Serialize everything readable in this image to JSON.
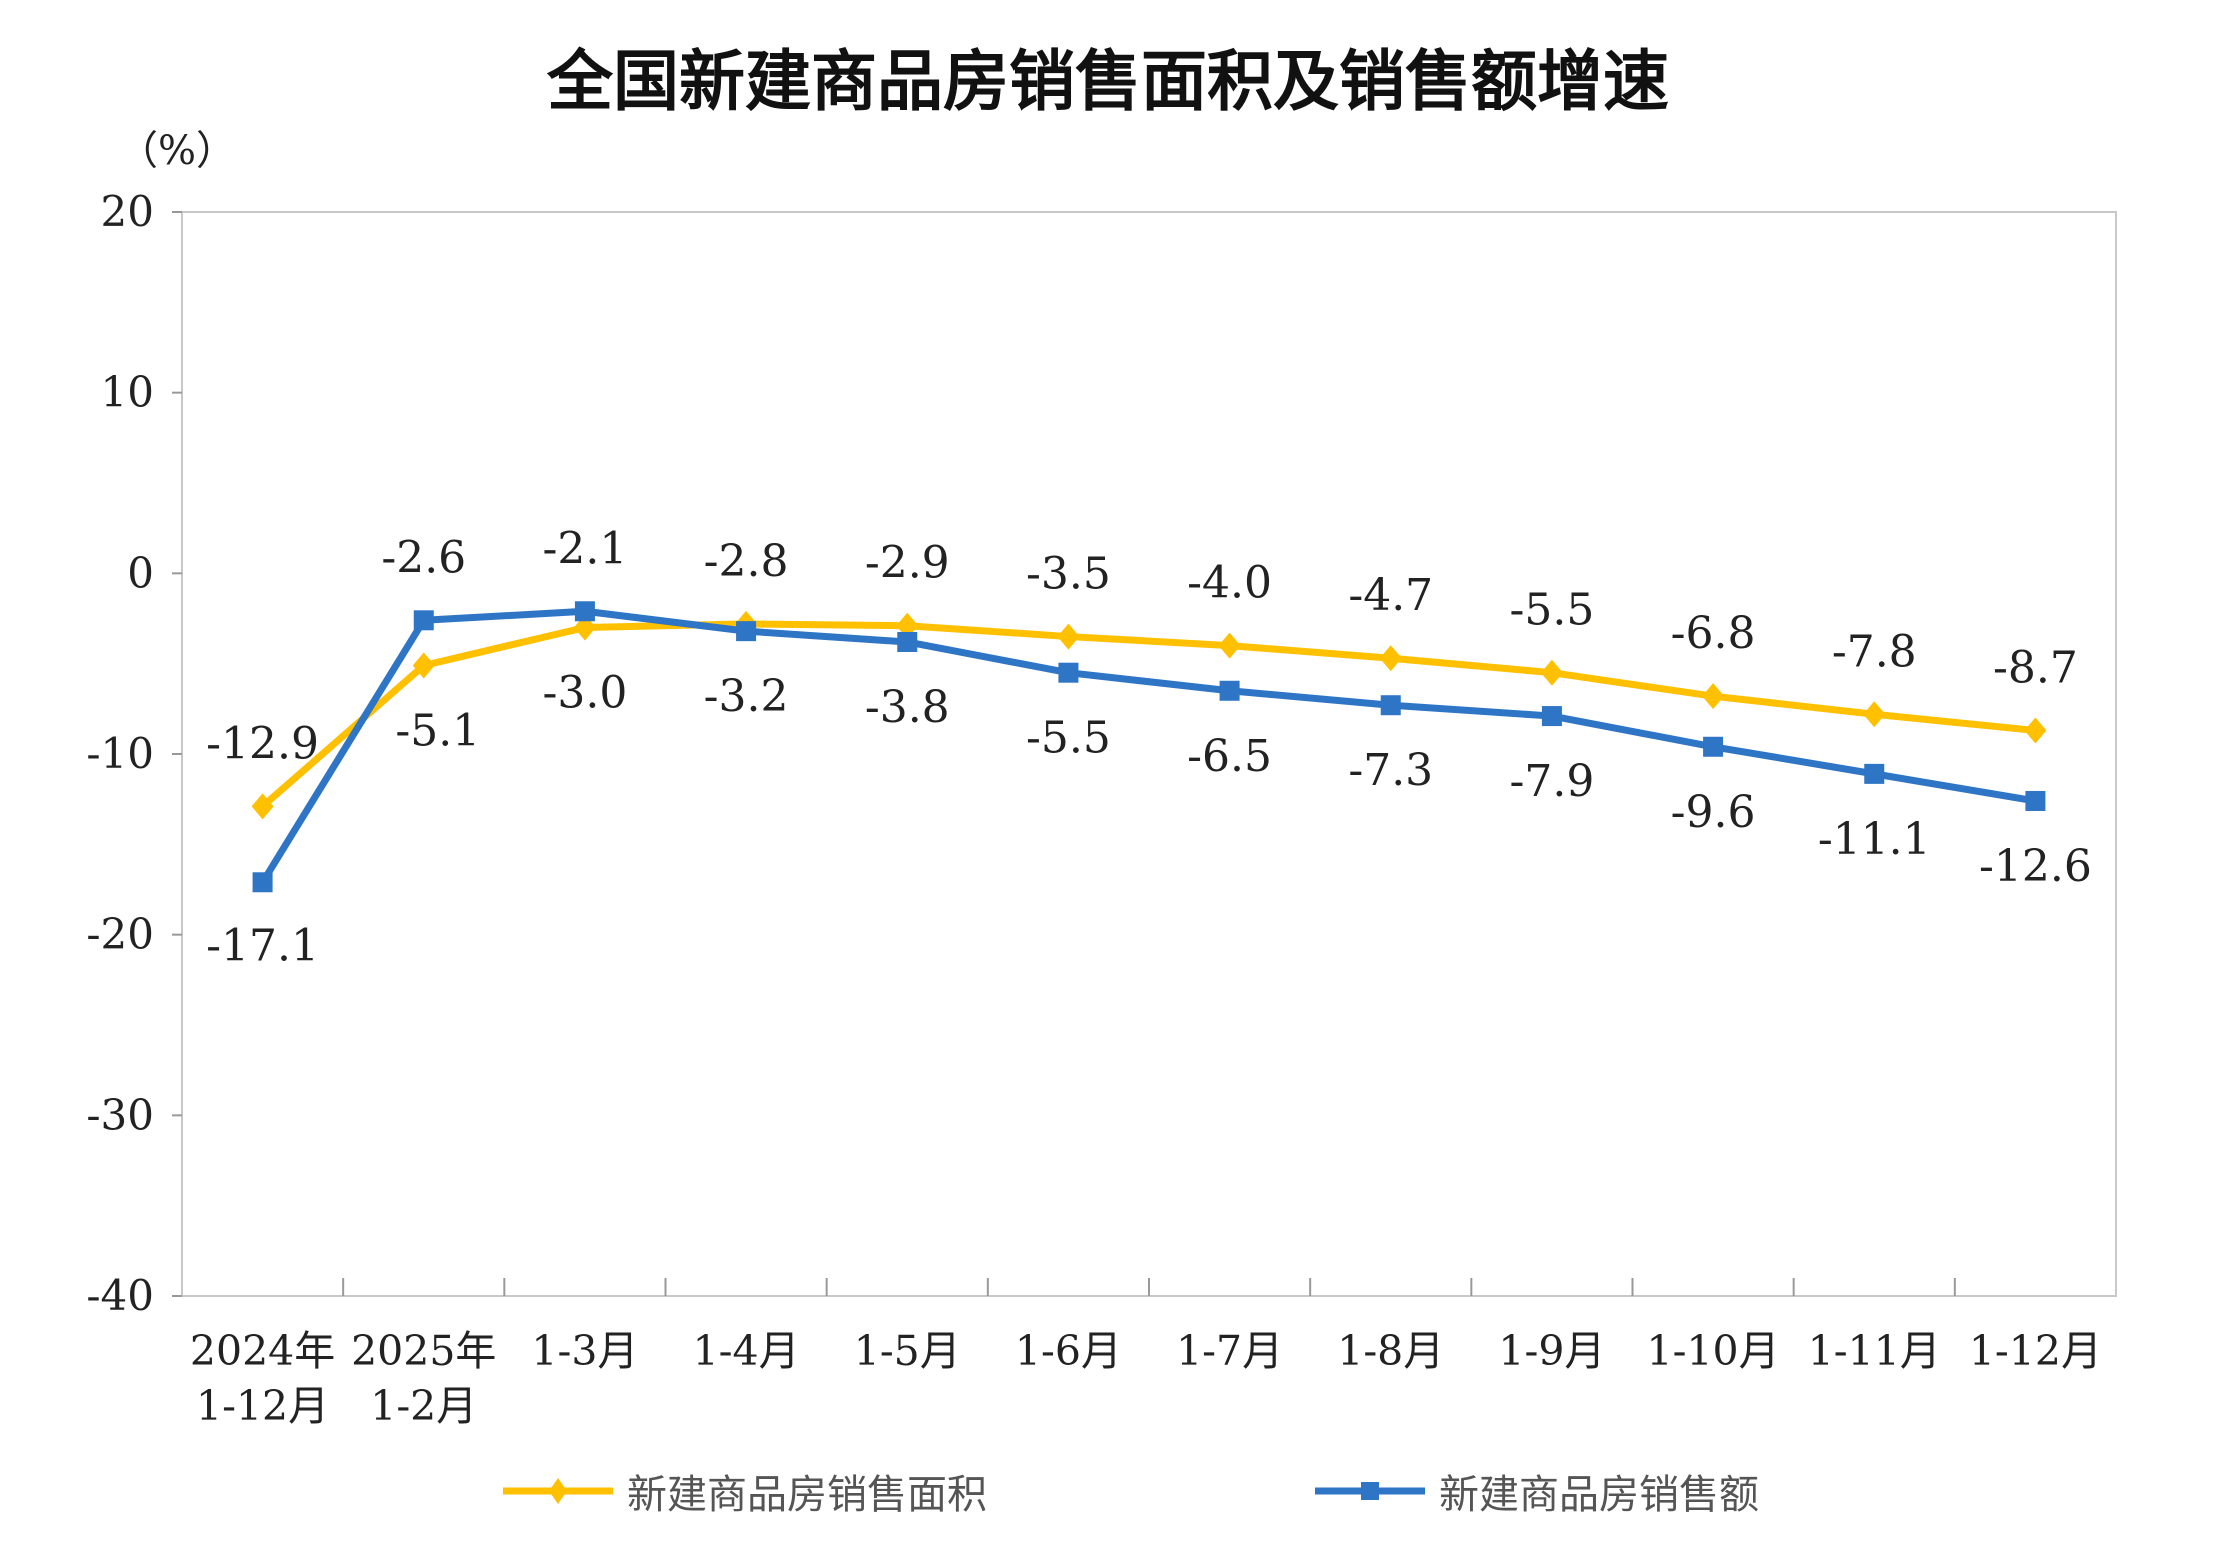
{
  "chart_data": {
    "type": "line",
    "title": "全国新建商品房销售面积及销售额增速",
    "ylabel": "（%）",
    "xlabel": "",
    "ylim": [
      -40,
      20
    ],
    "yticks": [
      20,
      10,
      0,
      -10,
      -20,
      -30,
      -40
    ],
    "grid": false,
    "legend_placement": "bottom",
    "categories": [
      [
        "2024年",
        "1-12月"
      ],
      [
        "2025年",
        "1-2月"
      ],
      [
        "1-3月"
      ],
      [
        "1-4月"
      ],
      [
        "1-5月"
      ],
      [
        "1-6月"
      ],
      [
        "1-7月"
      ],
      [
        "1-8月"
      ],
      [
        "1-9月"
      ],
      [
        "1-10月"
      ],
      [
        "1-11月"
      ],
      [
        "1-12月"
      ]
    ],
    "series": [
      {
        "name": "新建商品房销售面积",
        "color": "#FFC000",
        "marker": "diamond",
        "values": [
          -12.9,
          -5.1,
          -3.0,
          -2.8,
          -2.9,
          -3.5,
          -4.0,
          -4.7,
          -5.5,
          -6.8,
          -7.8,
          -8.7
        ]
      },
      {
        "name": "新建商品房销售额",
        "color": "#2E75C6",
        "marker": "square",
        "values": [
          -17.1,
          -2.6,
          -2.1,
          -3.2,
          -3.8,
          -5.5,
          -6.5,
          -7.3,
          -7.9,
          -9.6,
          -11.1,
          -12.6
        ]
      }
    ]
  }
}
